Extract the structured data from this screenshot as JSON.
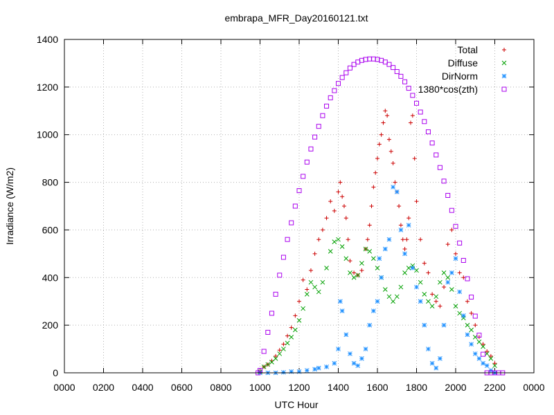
{
  "chart_data": {
    "type": "scatter",
    "title": "embrapa_MFR_Day20160121.txt",
    "xlabel": "UTC Hour",
    "ylabel": "Irradiance (W/m2)",
    "xlim": [
      0,
      24
    ],
    "ylim": [
      0,
      1400
    ],
    "x_tick_values": [
      0,
      2,
      4,
      6,
      8,
      10,
      12,
      14,
      16,
      18,
      20,
      22,
      24
    ],
    "x_tick_labels": [
      "0000",
      "0200",
      "0400",
      "0600",
      "0800",
      "1000",
      "1200",
      "1400",
      "1600",
      "1800",
      "2000",
      "2200",
      "0000"
    ],
    "y_ticks": [
      0,
      200,
      400,
      600,
      800,
      1000,
      1200,
      1400
    ],
    "grid": true,
    "legend_position": "top-right",
    "series": [
      {
        "name": "Total",
        "marker": "plus",
        "color": "#cc0000",
        "x": [
          10.0,
          10.2,
          10.4,
          10.6,
          10.8,
          11.0,
          11.2,
          11.4,
          11.6,
          11.8,
          12.0,
          12.2,
          12.4,
          12.6,
          12.8,
          13.0,
          13.2,
          13.4,
          13.6,
          13.8,
          14.0,
          14.1,
          14.2,
          14.3,
          14.4,
          14.5,
          14.6,
          14.8,
          15.0,
          15.2,
          15.4,
          15.5,
          15.6,
          15.7,
          15.8,
          15.9,
          16.0,
          16.1,
          16.2,
          16.3,
          16.4,
          16.5,
          16.6,
          16.7,
          16.8,
          16.9,
          17.0,
          17.1,
          17.2,
          17.3,
          17.4,
          17.5,
          17.6,
          17.7,
          17.8,
          17.9,
          18.0,
          18.2,
          18.4,
          18.6,
          18.8,
          19.0,
          19.2,
          19.4,
          19.6,
          19.8,
          20.0,
          20.2,
          20.4,
          20.6,
          20.8,
          21.0,
          21.2,
          21.4,
          21.6,
          21.8,
          22.0
        ],
        "y": [
          5,
          25,
          35,
          50,
          70,
          95,
          120,
          155,
          190,
          240,
          300,
          390,
          350,
          430,
          500,
          560,
          600,
          650,
          720,
          680,
          760,
          800,
          740,
          700,
          650,
          560,
          470,
          420,
          410,
          430,
          520,
          560,
          620,
          700,
          780,
          840,
          900,
          960,
          1000,
          1050,
          1100,
          1080,
          980,
          930,
          880,
          800,
          760,
          700,
          620,
          560,
          520,
          560,
          650,
          1050,
          1080,
          900,
          720,
          560,
          460,
          420,
          330,
          300,
          280,
          360,
          540,
          600,
          500,
          420,
          400,
          300,
          250,
          200,
          150,
          120,
          90,
          70,
          40
        ]
      },
      {
        "name": "Diffuse",
        "marker": "cross",
        "color": "#00a000",
        "x": [
          10.0,
          10.2,
          10.4,
          10.6,
          10.8,
          11.0,
          11.2,
          11.4,
          11.6,
          11.8,
          12.0,
          12.2,
          12.4,
          12.6,
          12.8,
          13.0,
          13.2,
          13.4,
          13.6,
          13.8,
          14.0,
          14.2,
          14.4,
          14.6,
          14.8,
          15.0,
          15.2,
          15.4,
          15.6,
          15.8,
          16.0,
          16.2,
          16.4,
          16.6,
          16.8,
          17.0,
          17.2,
          17.4,
          17.6,
          17.8,
          18.0,
          18.2,
          18.4,
          18.6,
          18.8,
          19.0,
          19.2,
          19.4,
          19.6,
          19.8,
          20.0,
          20.2,
          20.4,
          20.6,
          20.8,
          21.0,
          21.2,
          21.4,
          21.6,
          21.8,
          22.0
        ],
        "y": [
          5,
          25,
          35,
          45,
          60,
          80,
          100,
          125,
          150,
          180,
          220,
          270,
          330,
          380,
          360,
          340,
          380,
          440,
          510,
          550,
          560,
          530,
          480,
          420,
          400,
          410,
          460,
          520,
          510,
          480,
          440,
          400,
          350,
          320,
          300,
          320,
          360,
          420,
          440,
          450,
          430,
          380,
          330,
          300,
          280,
          320,
          380,
          420,
          400,
          350,
          280,
          250,
          230,
          200,
          180,
          150,
          130,
          110,
          80,
          60,
          30
        ]
      },
      {
        "name": "DirNorm",
        "marker": "star",
        "color": "#1e90ff",
        "x": [
          10.0,
          10.4,
          10.8,
          11.2,
          11.6,
          12.0,
          12.4,
          12.8,
          13.0,
          13.4,
          13.8,
          14.0,
          14.1,
          14.2,
          14.4,
          14.6,
          14.8,
          15.0,
          15.2,
          15.4,
          15.6,
          15.8,
          16.0,
          16.1,
          16.2,
          16.4,
          16.6,
          16.8,
          17.0,
          17.2,
          17.4,
          17.6,
          17.8,
          18.0,
          18.2,
          18.4,
          18.6,
          18.8,
          19.0,
          19.2,
          19.4,
          19.6,
          19.8,
          20.0,
          20.2,
          20.4,
          20.6,
          20.8,
          21.0,
          21.2,
          21.4,
          21.6,
          21.8,
          22.0
        ],
        "y": [
          0,
          0,
          0,
          2,
          5,
          5,
          10,
          15,
          20,
          25,
          40,
          100,
          300,
          260,
          160,
          80,
          40,
          30,
          60,
          100,
          200,
          260,
          300,
          480,
          400,
          520,
          560,
          780,
          760,
          600,
          500,
          620,
          440,
          360,
          300,
          200,
          100,
          40,
          20,
          60,
          200,
          380,
          420,
          480,
          340,
          240,
          160,
          120,
          80,
          60,
          40,
          30,
          10,
          0
        ]
      },
      {
        "name": "1380*cos(zth)",
        "marker": "square",
        "color": "#aa00ee",
        "x": [
          9.9,
          10.0,
          10.2,
          10.4,
          10.6,
          10.8,
          11.0,
          11.2,
          11.4,
          11.6,
          11.8,
          12.0,
          12.2,
          12.4,
          12.6,
          12.8,
          13.0,
          13.2,
          13.4,
          13.6,
          13.8,
          14.0,
          14.2,
          14.4,
          14.6,
          14.8,
          15.0,
          15.2,
          15.4,
          15.6,
          15.8,
          16.0,
          16.2,
          16.4,
          16.6,
          16.8,
          17.0,
          17.2,
          17.4,
          17.6,
          17.8,
          18.0,
          18.2,
          18.4,
          18.6,
          18.8,
          19.0,
          19.2,
          19.4,
          19.6,
          19.8,
          20.0,
          20.2,
          20.4,
          20.6,
          20.8,
          21.0,
          21.2,
          21.4,
          21.6,
          21.8,
          22.0,
          22.2,
          22.4
        ],
        "y": [
          0,
          10,
          90,
          170,
          250,
          330,
          410,
          485,
          560,
          630,
          700,
          765,
          825,
          885,
          940,
          990,
          1035,
          1080,
          1120,
          1155,
          1185,
          1215,
          1240,
          1260,
          1280,
          1295,
          1305,
          1312,
          1316,
          1318,
          1318,
          1316,
          1312,
          1305,
          1295,
          1282,
          1265,
          1245,
          1222,
          1195,
          1165,
          1132,
          1095,
          1055,
          1012,
          965,
          915,
          862,
          805,
          745,
          682,
          615,
          545,
          472,
          395,
          318,
          238,
          158,
          78,
          0,
          0,
          0,
          0,
          0
        ]
      }
    ]
  }
}
